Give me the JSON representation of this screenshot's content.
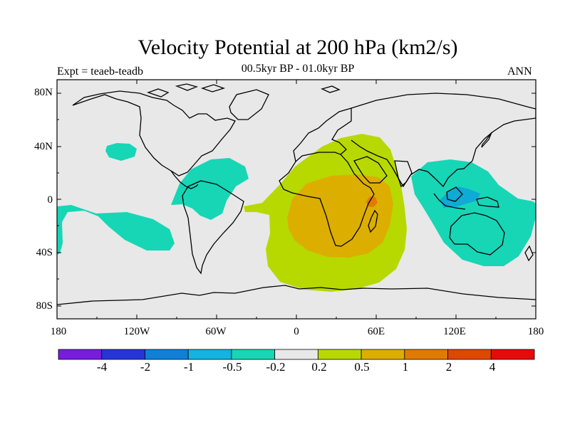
{
  "title": "Velocity Potential at 200 hPa (km2/s)",
  "subtitle": "00.5kyr BP - 01.0kyr BP",
  "experiment": "Expt = teaeb-teadb",
  "season": "ANN",
  "map": {
    "projection": "cylindrical equidistant",
    "lon_range": [
      -180,
      180
    ],
    "lat_range": [
      -90,
      90
    ],
    "ocean_color": "#e8e8e8",
    "coast_color": "#000000",
    "y_tick_labels": [
      "80N",
      "40N",
      "0",
      "40S",
      "80S"
    ],
    "x_tick_labels": [
      "180",
      "120W",
      "60W",
      "0",
      "60E",
      "120E",
      "180"
    ]
  },
  "colorbar": {
    "colors": [
      "#7a1be0",
      "#2535d9",
      "#0f80d8",
      "#12b4e0",
      "#16d6b6",
      "#e8e8e8",
      "#b7d900",
      "#dcae00",
      "#e07b00",
      "#e04800",
      "#e80a0a"
    ],
    "labels": [
      "-4",
      "-2",
      "-1",
      "-0.5",
      "-0.2",
      "0.2",
      "0.5",
      "1",
      "2",
      "4"
    ]
  }
}
